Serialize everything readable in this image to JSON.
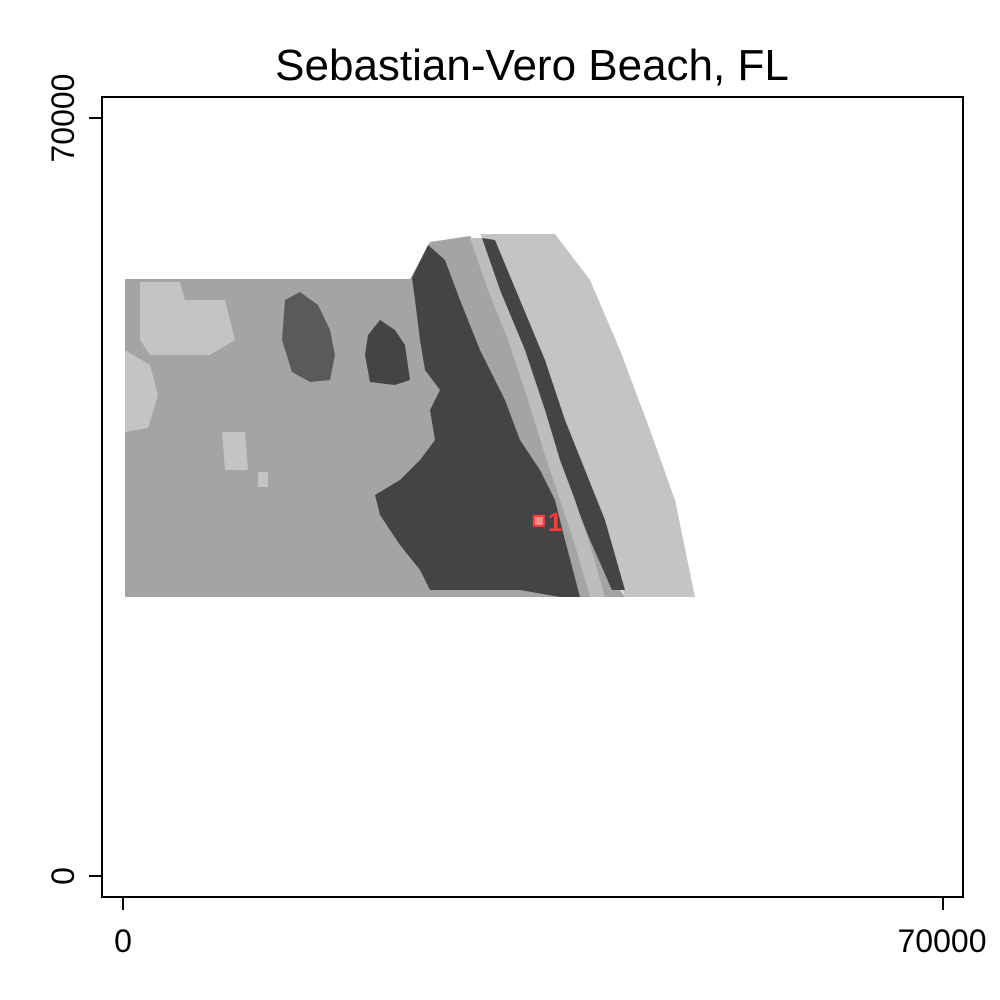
{
  "title": "Sebastian-Vero Beach, FL",
  "axes": {
    "x_ticks": [
      0,
      70000
    ],
    "y_ticks": [
      0,
      70000
    ],
    "x_range": [
      0,
      70000
    ],
    "y_range": [
      0,
      70000
    ]
  },
  "colors": {
    "background": "#ffffff",
    "frame": "#000000",
    "land_medium": "#a4a4a4",
    "land_light": "#c4c4c4",
    "urban_dark": "#444444",
    "barrier_light": "#bdbdbd",
    "marker": "#ff3b3b"
  },
  "marker": {
    "label": "1",
    "x": 35500,
    "y": 32800
  }
}
